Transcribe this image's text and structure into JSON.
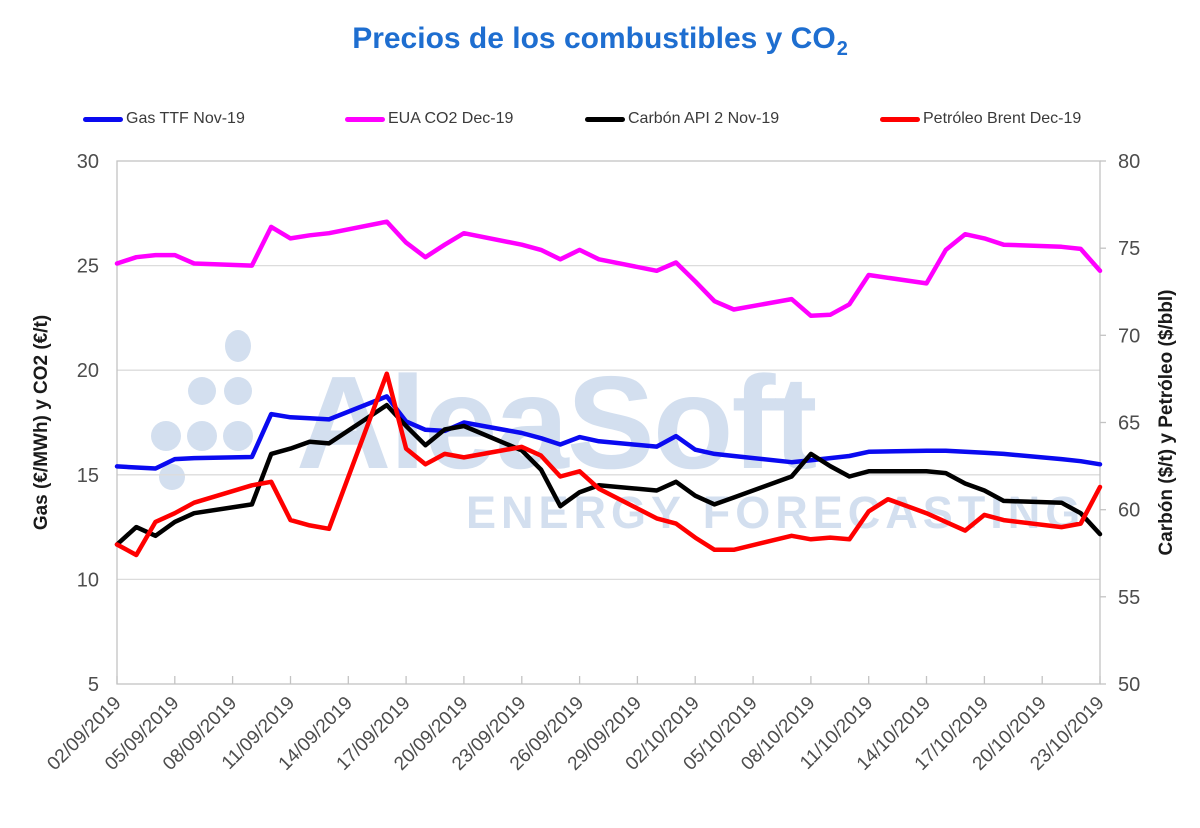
{
  "title": {
    "text": "Precios de los combustibles y CO",
    "subscript": "2"
  },
  "watermark": {
    "brand": "AleaSoft",
    "tagline": "ENERGY FORECASTING"
  },
  "colors": {
    "title": "#1E6ED0",
    "watermark": "#D3DFEF",
    "grid": "#DCDCDC",
    "axis_border": "#C3C3C3",
    "tick_label": "#4D4D4D",
    "axis_title": "#1A1A1A",
    "legend_text": "#3A3A3A",
    "background": "#FFFFFF"
  },
  "chart_data": {
    "type": "line",
    "title": "Precios de los combustibles y CO2",
    "x_total_days": 51,
    "x_label_interval_days": 3,
    "x_labels": [
      "02/09/2019",
      "05/09/2019",
      "08/09/2019",
      "11/09/2019",
      "14/09/2019",
      "17/09/2019",
      "20/09/2019",
      "23/09/2019",
      "26/09/2019",
      "29/09/2019",
      "02/10/2019",
      "05/10/2019",
      "08/10/2019",
      "11/10/2019",
      "14/10/2019",
      "17/10/2019",
      "20/10/2019",
      "23/10/2019"
    ],
    "left_axis": {
      "title": "Gas (€/MWh) y CO2 (€/t)",
      "min": 5,
      "max": 30,
      "ticks": [
        30,
        25,
        20,
        15,
        10,
        5
      ]
    },
    "right_axis": {
      "title": "Carbón ($/t) y Petróleo ($/bbl)",
      "min": 50,
      "max": 80,
      "ticks": [
        80,
        75,
        70,
        65,
        60,
        55,
        50
      ]
    },
    "gridlines_at_left_values": [
      25,
      20,
      15,
      10
    ],
    "legend_position": "top",
    "grid": true,
    "series": [
      {
        "id": "gas-ttf",
        "name": "Gas TTF Nov-19",
        "color": "#0A0AF0",
        "axis": "left",
        "points": [
          [
            0,
            15.4
          ],
          [
            1,
            15.35
          ],
          [
            2,
            15.3
          ],
          [
            3,
            15.75
          ],
          [
            4,
            15.8
          ],
          [
            7,
            15.85
          ],
          [
            8,
            17.9
          ],
          [
            9,
            17.75
          ],
          [
            10,
            17.7
          ],
          [
            11,
            17.65
          ],
          [
            14,
            18.75
          ],
          [
            15,
            17.55
          ],
          [
            16,
            17.15
          ],
          [
            17,
            17.1
          ],
          [
            18,
            17.5
          ],
          [
            21,
            17.0
          ],
          [
            22,
            16.75
          ],
          [
            23,
            16.45
          ],
          [
            24,
            16.8
          ],
          [
            25,
            16.6
          ],
          [
            28,
            16.35
          ],
          [
            29,
            16.85
          ],
          [
            30,
            16.2
          ],
          [
            31,
            16.0
          ],
          [
            32,
            15.9
          ],
          [
            35,
            15.6
          ],
          [
            36,
            15.7
          ],
          [
            37,
            15.8
          ],
          [
            38,
            15.9
          ],
          [
            39,
            16.1
          ],
          [
            42,
            16.15
          ],
          [
            43,
            16.15
          ],
          [
            44,
            16.1
          ],
          [
            45,
            16.05
          ],
          [
            46,
            16.0
          ],
          [
            49,
            15.75
          ],
          [
            50,
            15.65
          ],
          [
            51,
            15.5
          ]
        ]
      },
      {
        "id": "eua-co2",
        "name": "EUA CO2 Dec-19",
        "color": "#FF00FF",
        "axis": "left",
        "points": [
          [
            0,
            25.1
          ],
          [
            1,
            25.4
          ],
          [
            2,
            25.5
          ],
          [
            3,
            25.5
          ],
          [
            4,
            25.1
          ],
          [
            7,
            25.0
          ],
          [
            8,
            26.85
          ],
          [
            9,
            26.3
          ],
          [
            10,
            26.45
          ],
          [
            11,
            26.55
          ],
          [
            14,
            27.1
          ],
          [
            15,
            26.1
          ],
          [
            16,
            25.4
          ],
          [
            17,
            26.0
          ],
          [
            18,
            26.55
          ],
          [
            21,
            26.0
          ],
          [
            22,
            25.75
          ],
          [
            23,
            25.3
          ],
          [
            24,
            25.75
          ],
          [
            25,
            25.3
          ],
          [
            28,
            24.75
          ],
          [
            29,
            25.15
          ],
          [
            30,
            24.25
          ],
          [
            31,
            23.3
          ],
          [
            32,
            22.9
          ],
          [
            35,
            23.4
          ],
          [
            36,
            22.6
          ],
          [
            37,
            22.65
          ],
          [
            38,
            23.15
          ],
          [
            39,
            24.55
          ],
          [
            42,
            24.15
          ],
          [
            43,
            25.75
          ],
          [
            44,
            26.5
          ],
          [
            45,
            26.3
          ],
          [
            46,
            26.0
          ],
          [
            49,
            25.9
          ],
          [
            50,
            25.8
          ],
          [
            51,
            24.75
          ]
        ]
      },
      {
        "id": "carbon-api2",
        "name": "Carbón API 2 Nov-19",
        "color": "#000000",
        "axis": "right",
        "points": [
          [
            0,
            58.0
          ],
          [
            1,
            59.0
          ],
          [
            2,
            58.5
          ],
          [
            3,
            59.3
          ],
          [
            4,
            59.8
          ],
          [
            7,
            60.3
          ],
          [
            8,
            63.2
          ],
          [
            9,
            63.5
          ],
          [
            10,
            63.9
          ],
          [
            11,
            63.8
          ],
          [
            14,
            66.0
          ],
          [
            15,
            64.8
          ],
          [
            16,
            63.7
          ],
          [
            17,
            64.6
          ],
          [
            18,
            64.8
          ],
          [
            21,
            63.4
          ],
          [
            22,
            62.3
          ],
          [
            23,
            60.2
          ],
          [
            24,
            61.0
          ],
          [
            25,
            61.4
          ],
          [
            28,
            61.1
          ],
          [
            29,
            61.6
          ],
          [
            30,
            60.8
          ],
          [
            31,
            60.3
          ],
          [
            32,
            60.7
          ],
          [
            35,
            61.9
          ],
          [
            36,
            63.2
          ],
          [
            37,
            62.5
          ],
          [
            38,
            61.9
          ],
          [
            39,
            62.2
          ],
          [
            42,
            62.2
          ],
          [
            43,
            62.1
          ],
          [
            44,
            61.5
          ],
          [
            45,
            61.1
          ],
          [
            46,
            60.5
          ],
          [
            49,
            60.4
          ],
          [
            50,
            59.8
          ],
          [
            51,
            58.6
          ]
        ]
      },
      {
        "id": "petroleo-brent",
        "name": "Petróleo Brent Dec-19",
        "color": "#FF0000",
        "axis": "right",
        "points": [
          [
            0,
            58.0
          ],
          [
            1,
            57.4
          ],
          [
            2,
            59.3
          ],
          [
            3,
            59.8
          ],
          [
            4,
            60.4
          ],
          [
            7,
            61.4
          ],
          [
            8,
            61.6
          ],
          [
            9,
            59.4
          ],
          [
            10,
            59.1
          ],
          [
            11,
            58.9
          ],
          [
            14,
            67.8
          ],
          [
            15,
            63.5
          ],
          [
            16,
            62.6
          ],
          [
            17,
            63.2
          ],
          [
            18,
            63.0
          ],
          [
            21,
            63.6
          ],
          [
            22,
            63.1
          ],
          [
            23,
            61.9
          ],
          [
            24,
            62.2
          ],
          [
            25,
            61.2
          ],
          [
            28,
            59.5
          ],
          [
            29,
            59.2
          ],
          [
            30,
            58.4
          ],
          [
            31,
            57.7
          ],
          [
            32,
            57.7
          ],
          [
            35,
            58.5
          ],
          [
            36,
            58.3
          ],
          [
            37,
            58.4
          ],
          [
            38,
            58.3
          ],
          [
            39,
            59.9
          ],
          [
            40,
            60.6
          ],
          [
            42,
            59.8
          ],
          [
            43,
            59.3
          ],
          [
            44,
            58.8
          ],
          [
            45,
            59.7
          ],
          [
            46,
            59.4
          ],
          [
            49,
            59.0
          ],
          [
            50,
            59.2
          ],
          [
            51,
            61.3
          ]
        ]
      }
    ]
  }
}
